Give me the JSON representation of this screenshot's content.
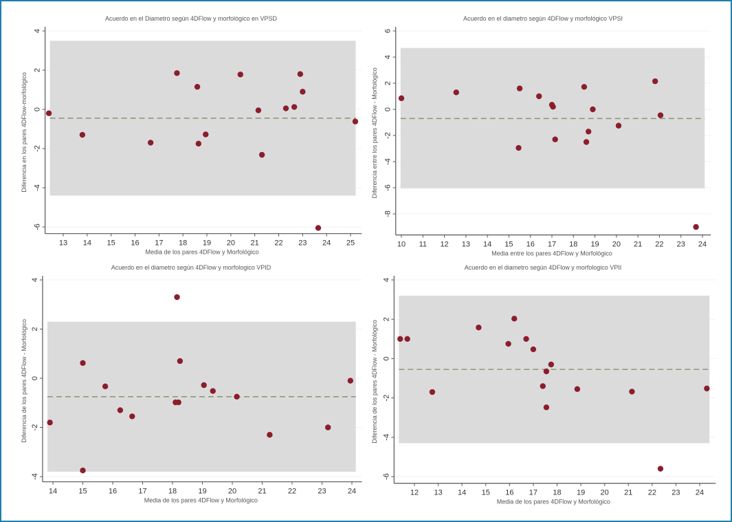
{
  "colors": {
    "point": "#8b1e2b",
    "band": "#dcdbdc",
    "mean_line": "#8c9a7a",
    "axis": "#555555",
    "border": "#1f7fae"
  },
  "chart_data": [
    {
      "type": "scatter",
      "title": "Acuerdo en el Diametro según 4DFlow y morfológico en VPSD",
      "xlabel": "Media de los pares 4DFlow y Morfológico",
      "ylabel": "Diferencia en los pares 4DFlow-morfológico",
      "xlim": [
        12.3,
        25.3
      ],
      "ylim": [
        -6.2,
        4.0
      ],
      "xticks": [
        13,
        14,
        15,
        16,
        17,
        18,
        19,
        20,
        21,
        22,
        23,
        24,
        25
      ],
      "yticks": [
        4,
        2,
        0,
        -2,
        -4,
        -6
      ],
      "limits_of_agreement": {
        "upper": 3.5,
        "lower": -4.4
      },
      "mean_difference": -0.45,
      "points": [
        [
          12.4,
          -0.2
        ],
        [
          13.8,
          -1.3
        ],
        [
          16.65,
          -1.7
        ],
        [
          17.75,
          1.85
        ],
        [
          18.6,
          1.15
        ],
        [
          18.65,
          -1.75
        ],
        [
          18.95,
          -1.28
        ],
        [
          20.4,
          1.78
        ],
        [
          21.15,
          -0.05
        ],
        [
          21.3,
          -2.32
        ],
        [
          22.3,
          0.05
        ],
        [
          22.65,
          0.12
        ],
        [
          22.9,
          1.8
        ],
        [
          23.0,
          0.9
        ],
        [
          23.65,
          -6.05
        ],
        [
          25.2,
          -0.62
        ]
      ]
    },
    {
      "type": "scatter",
      "title": "Acuerdo en el diametro según 4DFlow y morfológico VPSI",
      "xlabel": "Media entre los pares 4DFlow y Morfológico",
      "ylabel": "Diferencia entre los pares 4DFlow - Morfológico",
      "xlim": [
        9.8,
        24.2
      ],
      "ylim": [
        -9.4,
        6.0
      ],
      "xticks": [
        10,
        11,
        12,
        13,
        14,
        15,
        16,
        17,
        18,
        19,
        20,
        21,
        22,
        23,
        24
      ],
      "yticks": [
        6,
        4,
        2,
        0,
        -2,
        -4,
        -6,
        -8
      ],
      "limits_of_agreement": {
        "upper": 4.7,
        "lower": -6.05
      },
      "mean_difference": -0.7,
      "points": [
        [
          10.0,
          0.85
        ],
        [
          12.55,
          1.3
        ],
        [
          15.5,
          1.6
        ],
        [
          15.45,
          -2.95
        ],
        [
          16.4,
          1.0
        ],
        [
          17.0,
          0.35
        ],
        [
          17.05,
          0.2
        ],
        [
          17.15,
          -2.3
        ],
        [
          18.5,
          1.72
        ],
        [
          18.6,
          -2.5
        ],
        [
          18.7,
          -1.7
        ],
        [
          18.9,
          0.0
        ],
        [
          20.1,
          -1.25
        ],
        [
          21.8,
          2.15
        ],
        [
          22.05,
          -0.45
        ],
        [
          23.7,
          -9.0
        ]
      ]
    },
    {
      "type": "scatter",
      "title": "Acuerdo en el diametro según 4DFlow y morfologico VPID",
      "xlabel": "Media de los pares 4DFlow y Morfológico",
      "ylabel": "Diferencia de los pares 4DFlow - Morfológico",
      "xlim": [
        13.7,
        24.2
      ],
      "ylim": [
        -4.1,
        4.0
      ],
      "xticks": [
        14,
        15,
        16,
        17,
        18,
        19,
        20,
        21,
        22,
        23,
        24
      ],
      "yticks": [
        4,
        2,
        0,
        -2,
        -4
      ],
      "limits_of_agreement": {
        "upper": 2.3,
        "lower": -3.8
      },
      "mean_difference": -0.75,
      "points": [
        [
          13.9,
          -1.8
        ],
        [
          15.0,
          0.62
        ],
        [
          15.0,
          -3.75
        ],
        [
          15.75,
          -0.33
        ],
        [
          16.25,
          -1.3
        ],
        [
          16.65,
          -1.55
        ],
        [
          18.1,
          -0.98
        ],
        [
          18.2,
          -0.98
        ],
        [
          18.15,
          3.3
        ],
        [
          18.25,
          0.7
        ],
        [
          19.05,
          -0.28
        ],
        [
          19.35,
          -0.52
        ],
        [
          20.15,
          -0.75
        ],
        [
          21.25,
          -2.3
        ],
        [
          23.2,
          -2.0
        ],
        [
          23.95,
          -0.1
        ]
      ]
    },
    {
      "type": "scatter",
      "title": "Acuerdo en el diametro según 4DFlow y morfologico VPII",
      "xlabel": "Media de los pares 4DFlow y Morfológico",
      "ylabel": "Diferencia de los pares 4DFlow - Morfológico",
      "xlim": [
        11.2,
        24.5
      ],
      "ylim": [
        -6.2,
        4.0
      ],
      "xticks": [
        12,
        13,
        14,
        15,
        16,
        17,
        18,
        19,
        20,
        21,
        22,
        23,
        24
      ],
      "yticks": [
        4,
        2,
        0,
        -2,
        -4,
        -6
      ],
      "limits_of_agreement": {
        "upper": 3.2,
        "lower": -4.3
      },
      "mean_difference": -0.55,
      "points": [
        [
          11.4,
          1.0
        ],
        [
          11.7,
          1.0
        ],
        [
          12.75,
          -1.7
        ],
        [
          14.7,
          1.58
        ],
        [
          15.95,
          0.75
        ],
        [
          16.2,
          2.03
        ],
        [
          16.7,
          1.0
        ],
        [
          17.0,
          0.47
        ],
        [
          17.4,
          -1.4
        ],
        [
          17.55,
          -2.48
        ],
        [
          17.55,
          -0.65
        ],
        [
          17.75,
          -0.3
        ],
        [
          18.85,
          -1.55
        ],
        [
          21.15,
          -1.68
        ],
        [
          22.35,
          -5.6
        ],
        [
          24.3,
          -1.52
        ]
      ]
    }
  ]
}
